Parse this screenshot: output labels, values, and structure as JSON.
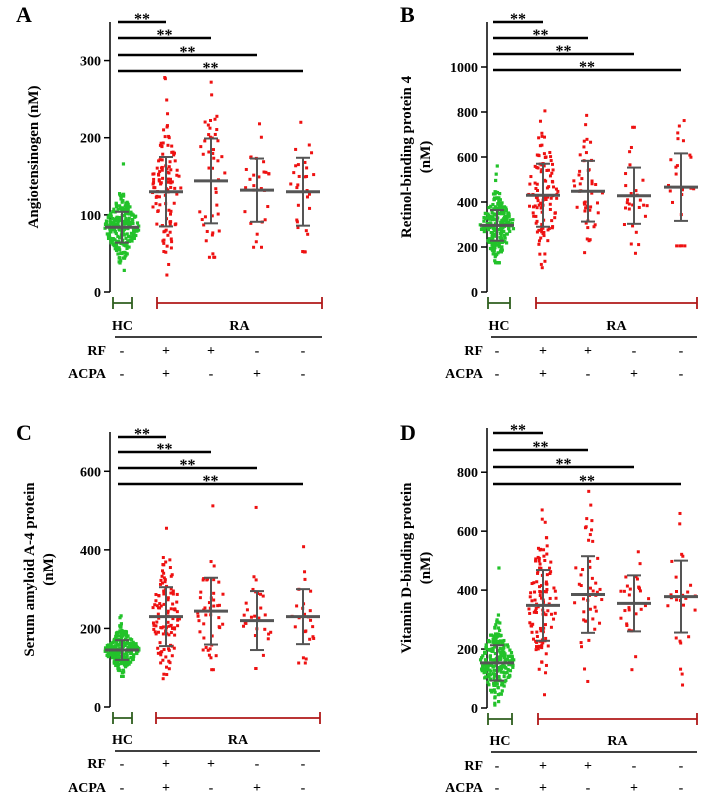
{
  "chart_data": [
    {
      "type": "scatter",
      "panel": "A",
      "ylabel": "Angiotensinogen (nM)",
      "ylim": [
        0,
        350
      ],
      "yticks": [
        0,
        100,
        200,
        300
      ],
      "groups": [
        {
          "key": "HC",
          "rf": "-",
          "acpa": "-",
          "mean": 84,
          "sd": 20,
          "n": 230,
          "min": 28,
          "max": 166,
          "color": "#22c22a"
        },
        {
          "key": "RF+ACPA+",
          "rf": "+",
          "acpa": "+",
          "mean": 130,
          "sd": 45,
          "n": 110,
          "min": 22,
          "max": 278,
          "color": "#ee1111"
        },
        {
          "key": "RF+ACPA-",
          "rf": "+",
          "acpa": "-",
          "mean": 144,
          "sd": 55,
          "n": 45,
          "min": 45,
          "max": 272,
          "color": "#ee1111"
        },
        {
          "key": "RF-ACPA+",
          "rf": "-",
          "acpa": "+",
          "mean": 132,
          "sd": 41,
          "n": 28,
          "min": 58,
          "max": 218,
          "color": "#ee1111"
        },
        {
          "key": "RF-ACPA-",
          "rf": "-",
          "acpa": "-",
          "mean": 130,
          "sd": 44,
          "n": 30,
          "min": 52,
          "max": 220,
          "color": "#ee1111"
        }
      ],
      "significance": [
        {
          "from": "HC",
          "to": "RF+ACPA+",
          "label": "**"
        },
        {
          "from": "HC",
          "to": "RF+ACPA-",
          "label": "**"
        },
        {
          "from": "HC",
          "to": "RF-ACPA+",
          "label": "**"
        },
        {
          "from": "HC",
          "to": "RF-ACPA-",
          "label": "**"
        }
      ]
    },
    {
      "type": "scatter",
      "panel": "B",
      "ylabel": "Retinol-binding protein 4 (nM)",
      "ylim": [
        0,
        1200
      ],
      "yticks": [
        0,
        200,
        400,
        600,
        800,
        1000
      ],
      "groups": [
        {
          "key": "HC",
          "rf": "-",
          "acpa": "-",
          "mean": 296,
          "sd": 68,
          "n": 230,
          "min": 130,
          "max": 560,
          "color": "#22c22a"
        },
        {
          "key": "RF+ACPA+",
          "rf": "+",
          "acpa": "+",
          "mean": 430,
          "sd": 140,
          "n": 110,
          "min": 108,
          "max": 805,
          "color": "#ee1111"
        },
        {
          "key": "RF+ACPA-",
          "rf": "+",
          "acpa": "-",
          "mean": 448,
          "sd": 135,
          "n": 45,
          "min": 175,
          "max": 785,
          "color": "#ee1111"
        },
        {
          "key": "RF-ACPA+",
          "rf": "-",
          "acpa": "+",
          "mean": 428,
          "sd": 125,
          "n": 28,
          "min": 172,
          "max": 732,
          "color": "#ee1111"
        },
        {
          "key": "RF-ACPA-",
          "rf": "-",
          "acpa": "-",
          "mean": 466,
          "sd": 150,
          "n": 24,
          "min": 205,
          "max": 762,
          "color": "#ee1111"
        }
      ],
      "significance": [
        {
          "from": "HC",
          "to": "RF+ACPA+",
          "label": "**"
        },
        {
          "from": "HC",
          "to": "RF+ACPA-",
          "label": "**"
        },
        {
          "from": "HC",
          "to": "RF-ACPA+",
          "label": "**"
        },
        {
          "from": "HC",
          "to": "RF-ACPA-",
          "label": "**"
        }
      ]
    },
    {
      "type": "scatter",
      "panel": "C",
      "ylabel": "Serum amyloid A-4 protein (nM)",
      "ylim": [
        0,
        700
      ],
      "yticks": [
        0,
        200,
        400,
        600
      ],
      "groups": [
        {
          "key": "HC",
          "rf": "-",
          "acpa": "-",
          "mean": 145,
          "sd": 25,
          "n": 230,
          "min": 78,
          "max": 232,
          "color": "#22c22a"
        },
        {
          "key": "RF+ACPA+",
          "rf": "+",
          "acpa": "+",
          "mean": 230,
          "sd": 75,
          "n": 110,
          "min": 72,
          "max": 455,
          "color": "#ee1111"
        },
        {
          "key": "RF+ACPA-",
          "rf": "+",
          "acpa": "-",
          "mean": 244,
          "sd": 85,
          "n": 45,
          "min": 95,
          "max": 512,
          "color": "#ee1111"
        },
        {
          "key": "RF-ACPA+",
          "rf": "-",
          "acpa": "+",
          "mean": 220,
          "sd": 75,
          "n": 28,
          "min": 98,
          "max": 508,
          "color": "#ee1111"
        },
        {
          "key": "RF-ACPA-",
          "rf": "-",
          "acpa": "-",
          "mean": 230,
          "sd": 70,
          "n": 26,
          "min": 112,
          "max": 408,
          "color": "#ee1111"
        }
      ],
      "significance": [
        {
          "from": "HC",
          "to": "RF+ACPA+",
          "label": "**"
        },
        {
          "from": "HC",
          "to": "RF+ACPA-",
          "label": "**"
        },
        {
          "from": "HC",
          "to": "RF-ACPA+",
          "label": "**"
        },
        {
          "from": "HC",
          "to": "RF-ACPA-",
          "label": "**"
        }
      ]
    },
    {
      "type": "scatter",
      "panel": "D",
      "ylabel": "Vitamin D-binding protein (nM)",
      "ylim": [
        0,
        950
      ],
      "yticks": [
        0,
        200,
        400,
        600,
        800
      ],
      "groups": [
        {
          "key": "HC",
          "rf": "-",
          "acpa": "-",
          "mean": 153,
          "sd": 60,
          "n": 230,
          "min": 10,
          "max": 475,
          "color": "#22c22a"
        },
        {
          "key": "RF+ACPA+",
          "rf": "+",
          "acpa": "+",
          "mean": 348,
          "sd": 120,
          "n": 110,
          "min": 45,
          "max": 672,
          "color": "#ee1111"
        },
        {
          "key": "RF+ACPA-",
          "rf": "+",
          "acpa": "-",
          "mean": 385,
          "sd": 130,
          "n": 45,
          "min": 90,
          "max": 735,
          "color": "#ee1111"
        },
        {
          "key": "RF-ACPA+",
          "rf": "-",
          "acpa": "+",
          "mean": 355,
          "sd": 95,
          "n": 28,
          "min": 130,
          "max": 530,
          "color": "#ee1111"
        },
        {
          "key": "RF-ACPA-",
          "rf": "-",
          "acpa": "-",
          "mean": 378,
          "sd": 122,
          "n": 26,
          "min": 78,
          "max": 660,
          "color": "#ee1111"
        }
      ],
      "significance": [
        {
          "from": "HC",
          "to": "RF+ACPA+",
          "label": "**"
        },
        {
          "from": "HC",
          "to": "RF+ACPA-",
          "label": "**"
        },
        {
          "from": "HC",
          "to": "RF-ACPA+",
          "label": "**"
        },
        {
          "from": "HC",
          "to": "RF-ACPA-",
          "label": "**"
        }
      ]
    }
  ],
  "labels": {
    "hc": "HC",
    "ra": "RA",
    "rf": "RF",
    "acpa": "ACPA"
  },
  "colors": {
    "hc_points": "#22c22a",
    "ra_points": "#ee1111",
    "hc_bracket": "#2e5e1e",
    "ra_bracket": "#b01818",
    "summary_bars": "#555555"
  }
}
